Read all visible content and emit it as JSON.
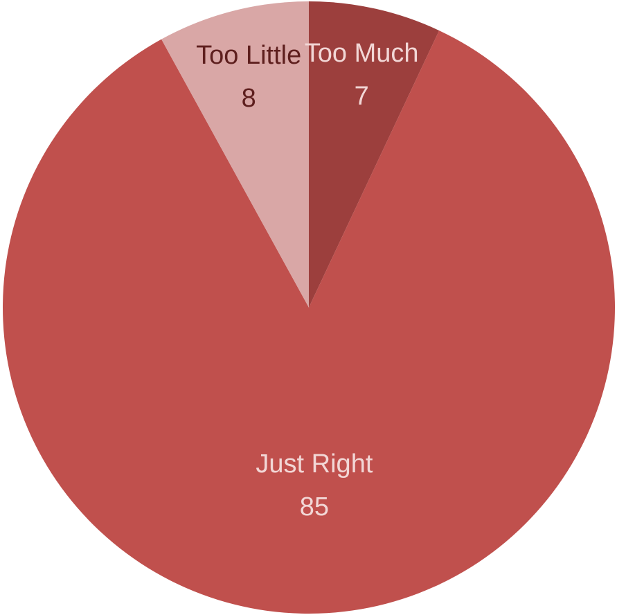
{
  "chart_data": {
    "type": "pie",
    "title": "",
    "slices": [
      {
        "label": "Too Much",
        "value": 7,
        "color": "#9C3F3D",
        "label_color": "#F2D7D6"
      },
      {
        "label": "Just Right",
        "value": 85,
        "color": "#C0504D",
        "label_color": "#F2D7D6"
      },
      {
        "label": "Too Little",
        "value": 8,
        "color": "#D9A7A6",
        "label_color": "#5E1F1E"
      }
    ],
    "start_angle_deg": 0,
    "direction": "clockwise"
  }
}
